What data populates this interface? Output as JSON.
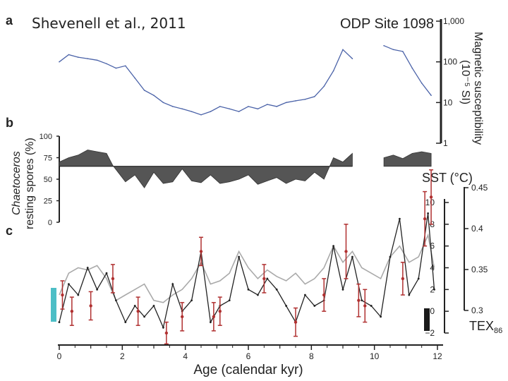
{
  "chart_data": {
    "type": "line",
    "title": "Shevenell et al., 2011",
    "site_label": "ODP Site 1098",
    "panel_labels": [
      "a",
      "b",
      "c"
    ],
    "xlabel": "Age (calendar kyr)",
    "xlim": [
      0,
      12
    ],
    "xticks": [
      0,
      2,
      4,
      6,
      8,
      10,
      12
    ],
    "panel_a": {
      "ylabel_lines": [
        "Magnetic susceptibility",
        "(10⁻⁵ SI)"
      ],
      "scale": "log",
      "ylim": [
        1,
        1000
      ],
      "ytick_labels": [
        "1,000",
        "100",
        "10",
        "1"
      ],
      "ytick_values": [
        1000,
        100,
        10,
        1
      ],
      "color": "#4a62a8",
      "gap": [
        9.3,
        10.3
      ],
      "x": [
        0.0,
        0.3,
        0.6,
        0.9,
        1.2,
        1.5,
        1.8,
        2.1,
        2.4,
        2.7,
        3.0,
        3.3,
        3.6,
        3.9,
        4.2,
        4.5,
        4.8,
        5.1,
        5.4,
        5.7,
        6.0,
        6.3,
        6.6,
        6.9,
        7.2,
        7.5,
        7.8,
        8.1,
        8.4,
        8.7,
        9.0,
        9.3,
        10.3,
        10.6,
        10.9,
        11.2,
        11.5,
        11.8
      ],
      "values": [
        100,
        150,
        130,
        120,
        110,
        90,
        70,
        80,
        40,
        20,
        15,
        10,
        8,
        7,
        6,
        5,
        6,
        8,
        7,
        6,
        8,
        7,
        9,
        8,
        10,
        11,
        12,
        14,
        25,
        60,
        200,
        120,
        250,
        200,
        180,
        70,
        30,
        15
      ]
    },
    "panel_b": {
      "ylabel_lines": [
        "Chaetoceros",
        "resting spores (%)"
      ],
      "ylim": [
        0,
        100
      ],
      "yticks": [
        0,
        25,
        50,
        75,
        100
      ],
      "baseline": 65,
      "color": "#555555",
      "gap": [
        9.3,
        10.3
      ],
      "x": [
        0.0,
        0.3,
        0.6,
        0.9,
        1.2,
        1.5,
        1.7,
        2.1,
        2.4,
        2.7,
        3.0,
        3.3,
        3.6,
        3.9,
        4.2,
        4.5,
        4.8,
        5.1,
        5.4,
        5.7,
        6.0,
        6.3,
        6.6,
        6.9,
        7.2,
        7.5,
        7.8,
        8.1,
        8.4,
        8.7,
        9.0,
        9.3,
        10.3,
        10.6,
        10.9,
        11.2,
        11.5,
        11.8
      ],
      "values": [
        70,
        75,
        78,
        84,
        82,
        80,
        66,
        47,
        55,
        40,
        58,
        45,
        47,
        62,
        48,
        46,
        55,
        45,
        47,
        50,
        55,
        44,
        48,
        52,
        45,
        50,
        48,
        58,
        50,
        75,
        70,
        80,
        75,
        78,
        74,
        80,
        82,
        80
      ]
    },
    "panel_c": {
      "sst_axis": {
        "label": "SST (°C)",
        "ylim": [
          -2,
          10
        ],
        "yticks": [
          -2,
          0,
          2,
          4,
          6,
          8,
          10
        ]
      },
      "tex_axis": {
        "label": "TEX",
        "label_sub": "86",
        "ylim": [
          0.3,
          0.45
        ],
        "yticks": [
          0.3,
          0.35,
          0.4,
          0.45
        ],
        "ytick_labels": [
          "0.3",
          "0.35",
          "0.4",
          "0.45"
        ]
      },
      "series": [
        {
          "name": "TEX86 (grey)",
          "color": "#aaaaaa",
          "x": [
            0.0,
            0.3,
            0.6,
            0.9,
            1.2,
            1.5,
            1.8,
            2.1,
            2.4,
            2.7,
            3.0,
            3.3,
            3.6,
            3.9,
            4.2,
            4.5,
            4.8,
            5.1,
            5.4,
            5.7,
            6.0,
            6.3,
            6.6,
            6.9,
            7.2,
            7.5,
            7.8,
            8.1,
            8.4,
            8.7,
            9.0,
            9.3,
            9.6,
            9.9,
            10.2,
            10.5,
            10.8,
            11.1,
            11.4,
            11.7,
            11.9
          ],
          "values": [
            1.5,
            3.5,
            4.0,
            3.8,
            4.2,
            3.0,
            1.0,
            1.5,
            2.0,
            2.5,
            1.0,
            0.8,
            1.5,
            2.0,
            3.0,
            4.5,
            2.5,
            2.8,
            3.5,
            5.5,
            4.0,
            3.0,
            3.8,
            3.2,
            2.8,
            3.5,
            2.5,
            3.0,
            4.0,
            6.0,
            4.5,
            5.5,
            4.0,
            3.5,
            3.0,
            5.0,
            6.0,
            4.5,
            5.0,
            7.0,
            4.0
          ]
        },
        {
          "name": "SST (black)",
          "color": "#222222",
          "x": [
            0.0,
            0.3,
            0.6,
            0.9,
            1.2,
            1.5,
            1.8,
            2.1,
            2.4,
            2.7,
            3.0,
            3.3,
            3.6,
            3.9,
            4.2,
            4.5,
            4.8,
            5.1,
            5.4,
            5.7,
            6.0,
            6.3,
            6.6,
            6.9,
            7.2,
            7.5,
            7.8,
            8.1,
            8.4,
            8.7,
            9.0,
            9.3,
            9.6,
            9.9,
            10.2,
            10.5,
            10.8,
            11.1,
            11.4,
            11.7,
            11.9
          ],
          "values": [
            -1.0,
            2.5,
            1.5,
            4.0,
            2.0,
            3.5,
            1.0,
            -1.0,
            0.5,
            -0.5,
            0.5,
            -1.5,
            2.5,
            0.0,
            1.0,
            5.5,
            -1.0,
            0.5,
            1.0,
            5.0,
            2.0,
            1.5,
            3.0,
            2.0,
            0.5,
            -1.0,
            1.5,
            0.5,
            1.0,
            6.0,
            2.0,
            5.0,
            1.0,
            0.5,
            -0.5,
            5.0,
            8.5,
            1.5,
            3.0,
            9.0,
            2.0
          ]
        },
        {
          "name": "SST estimates with error bars (red)",
          "color": "#b03030",
          "x": [
            0.1,
            0.4,
            1.0,
            1.7,
            2.5,
            3.4,
            3.9,
            4.5,
            4.9,
            5.1,
            6.5,
            7.5,
            8.4,
            9.1,
            9.5,
            9.7,
            10.9,
            11.6,
            11.8
          ],
          "values": [
            1.5,
            0.0,
            0.5,
            3.0,
            0.0,
            -2.0,
            -0.5,
            5.5,
            -0.5,
            0.0,
            3.0,
            -1.0,
            1.5,
            5.5,
            1.0,
            0.5,
            3.0,
            8.5,
            10.5
          ],
          "errors": [
            1.3,
            1.3,
            1.3,
            1.3,
            1.3,
            1.0,
            1.3,
            1.3,
            1.3,
            1.3,
            1.3,
            1.3,
            1.5,
            2.5,
            1.5,
            1.5,
            1.5,
            2.5,
            2.5
          ]
        }
      ]
    }
  }
}
